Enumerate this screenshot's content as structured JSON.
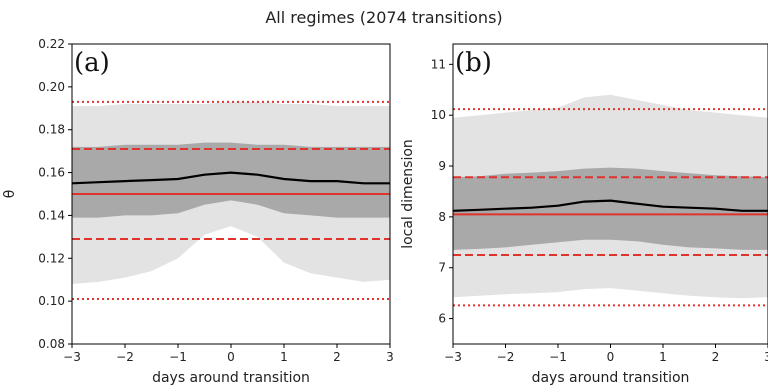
{
  "figure": {
    "title": "All regimes (2074 transitions)"
  },
  "chart_data": [
    {
      "type": "area",
      "panel_label": "(a)",
      "xlabel": "days around transition",
      "ylabel": "θ",
      "xlim": [
        -3,
        3
      ],
      "ylim": [
        0.08,
        0.22
      ],
      "xticks": [
        -3,
        -2,
        -1,
        0,
        1,
        2,
        3
      ],
      "yticks": [
        0.08,
        0.1,
        0.12,
        0.14,
        0.16,
        0.18,
        0.2,
        0.22
      ],
      "ytick_labels": [
        "0.08",
        "0.10",
        "0.12",
        "0.14",
        "0.16",
        "0.18",
        "0.20",
        "0.22"
      ],
      "x": [
        -3,
        -2.5,
        -2,
        -1.5,
        -1,
        -0.5,
        0,
        0.5,
        1,
        1.5,
        2,
        2.5,
        3
      ],
      "mean": [
        0.155,
        0.1555,
        0.156,
        0.1565,
        0.157,
        0.159,
        0.16,
        0.159,
        0.157,
        0.156,
        0.156,
        0.155,
        0.155
      ],
      "inner_band_upper": [
        0.172,
        0.172,
        0.173,
        0.173,
        0.173,
        0.174,
        0.174,
        0.173,
        0.173,
        0.172,
        0.172,
        0.172,
        0.172
      ],
      "inner_band_lower": [
        0.139,
        0.139,
        0.14,
        0.14,
        0.141,
        0.145,
        0.147,
        0.145,
        0.141,
        0.14,
        0.139,
        0.139,
        0.139
      ],
      "outer_band_upper": [
        0.191,
        0.191,
        0.192,
        0.192,
        0.192,
        0.192,
        0.193,
        0.193,
        0.192,
        0.192,
        0.191,
        0.191,
        0.191
      ],
      "outer_band_lower": [
        0.108,
        0.109,
        0.111,
        0.114,
        0.12,
        0.131,
        0.135,
        0.13,
        0.118,
        0.113,
        0.111,
        0.109,
        0.11
      ],
      "reference_lines": [
        {
          "value": 0.15,
          "style": "solid",
          "color": "#e0332e"
        },
        {
          "value": 0.171,
          "style": "dashed",
          "color": "#e0332e"
        },
        {
          "value": 0.129,
          "style": "dashed",
          "color": "#e0332e"
        },
        {
          "value": 0.193,
          "style": "dotted",
          "color": "#e0332e"
        },
        {
          "value": 0.101,
          "style": "dotted",
          "color": "#e0332e"
        }
      ],
      "grid": false
    },
    {
      "type": "area",
      "panel_label": "(b)",
      "xlabel": "days around transition",
      "ylabel": "local dimension",
      "xlim": [
        -3,
        3
      ],
      "ylim": [
        5.5,
        11.4
      ],
      "xticks": [
        -3,
        -2,
        -1,
        0,
        1,
        2,
        3
      ],
      "yticks": [
        6,
        7,
        8,
        9,
        10,
        11
      ],
      "ytick_labels": [
        "6",
        "7",
        "8",
        "9",
        "10",
        "11"
      ],
      "x": [
        -3,
        -2.5,
        -2,
        -1.5,
        -1,
        -0.5,
        0,
        0.5,
        1,
        1.5,
        2,
        2.5,
        3
      ],
      "mean": [
        8.12,
        8.14,
        8.16,
        8.18,
        8.22,
        8.3,
        8.32,
        8.26,
        8.2,
        8.18,
        8.16,
        8.12,
        8.12
      ],
      "inner_band_upper": [
        8.78,
        8.8,
        8.85,
        8.87,
        8.9,
        8.95,
        8.97,
        8.95,
        8.9,
        8.86,
        8.82,
        8.8,
        8.78
      ],
      "inner_band_lower": [
        7.35,
        7.37,
        7.4,
        7.45,
        7.5,
        7.55,
        7.55,
        7.52,
        7.45,
        7.4,
        7.38,
        7.35,
        7.35
      ],
      "outer_band_upper": [
        9.95,
        10.0,
        10.05,
        10.1,
        10.15,
        10.35,
        10.4,
        10.3,
        10.2,
        10.1,
        10.05,
        10.0,
        9.95
      ],
      "outer_band_lower": [
        6.42,
        6.45,
        6.48,
        6.5,
        6.52,
        6.58,
        6.6,
        6.55,
        6.5,
        6.45,
        6.42,
        6.4,
        6.42
      ],
      "reference_lines": [
        {
          "value": 8.05,
          "style": "solid",
          "color": "#e0332e"
        },
        {
          "value": 8.78,
          "style": "dashed",
          "color": "#e0332e"
        },
        {
          "value": 7.25,
          "style": "dashed",
          "color": "#e0332e"
        },
        {
          "value": 10.12,
          "style": "dotted",
          "color": "#e0332e"
        },
        {
          "value": 6.26,
          "style": "dotted",
          "color": "#e0332e"
        }
      ],
      "grid": false
    }
  ],
  "colors": {
    "outer_band": "#e3e3e3",
    "inner_band": "#a9a9a9",
    "mean_line": "#000000",
    "reference": "#e0332e"
  }
}
